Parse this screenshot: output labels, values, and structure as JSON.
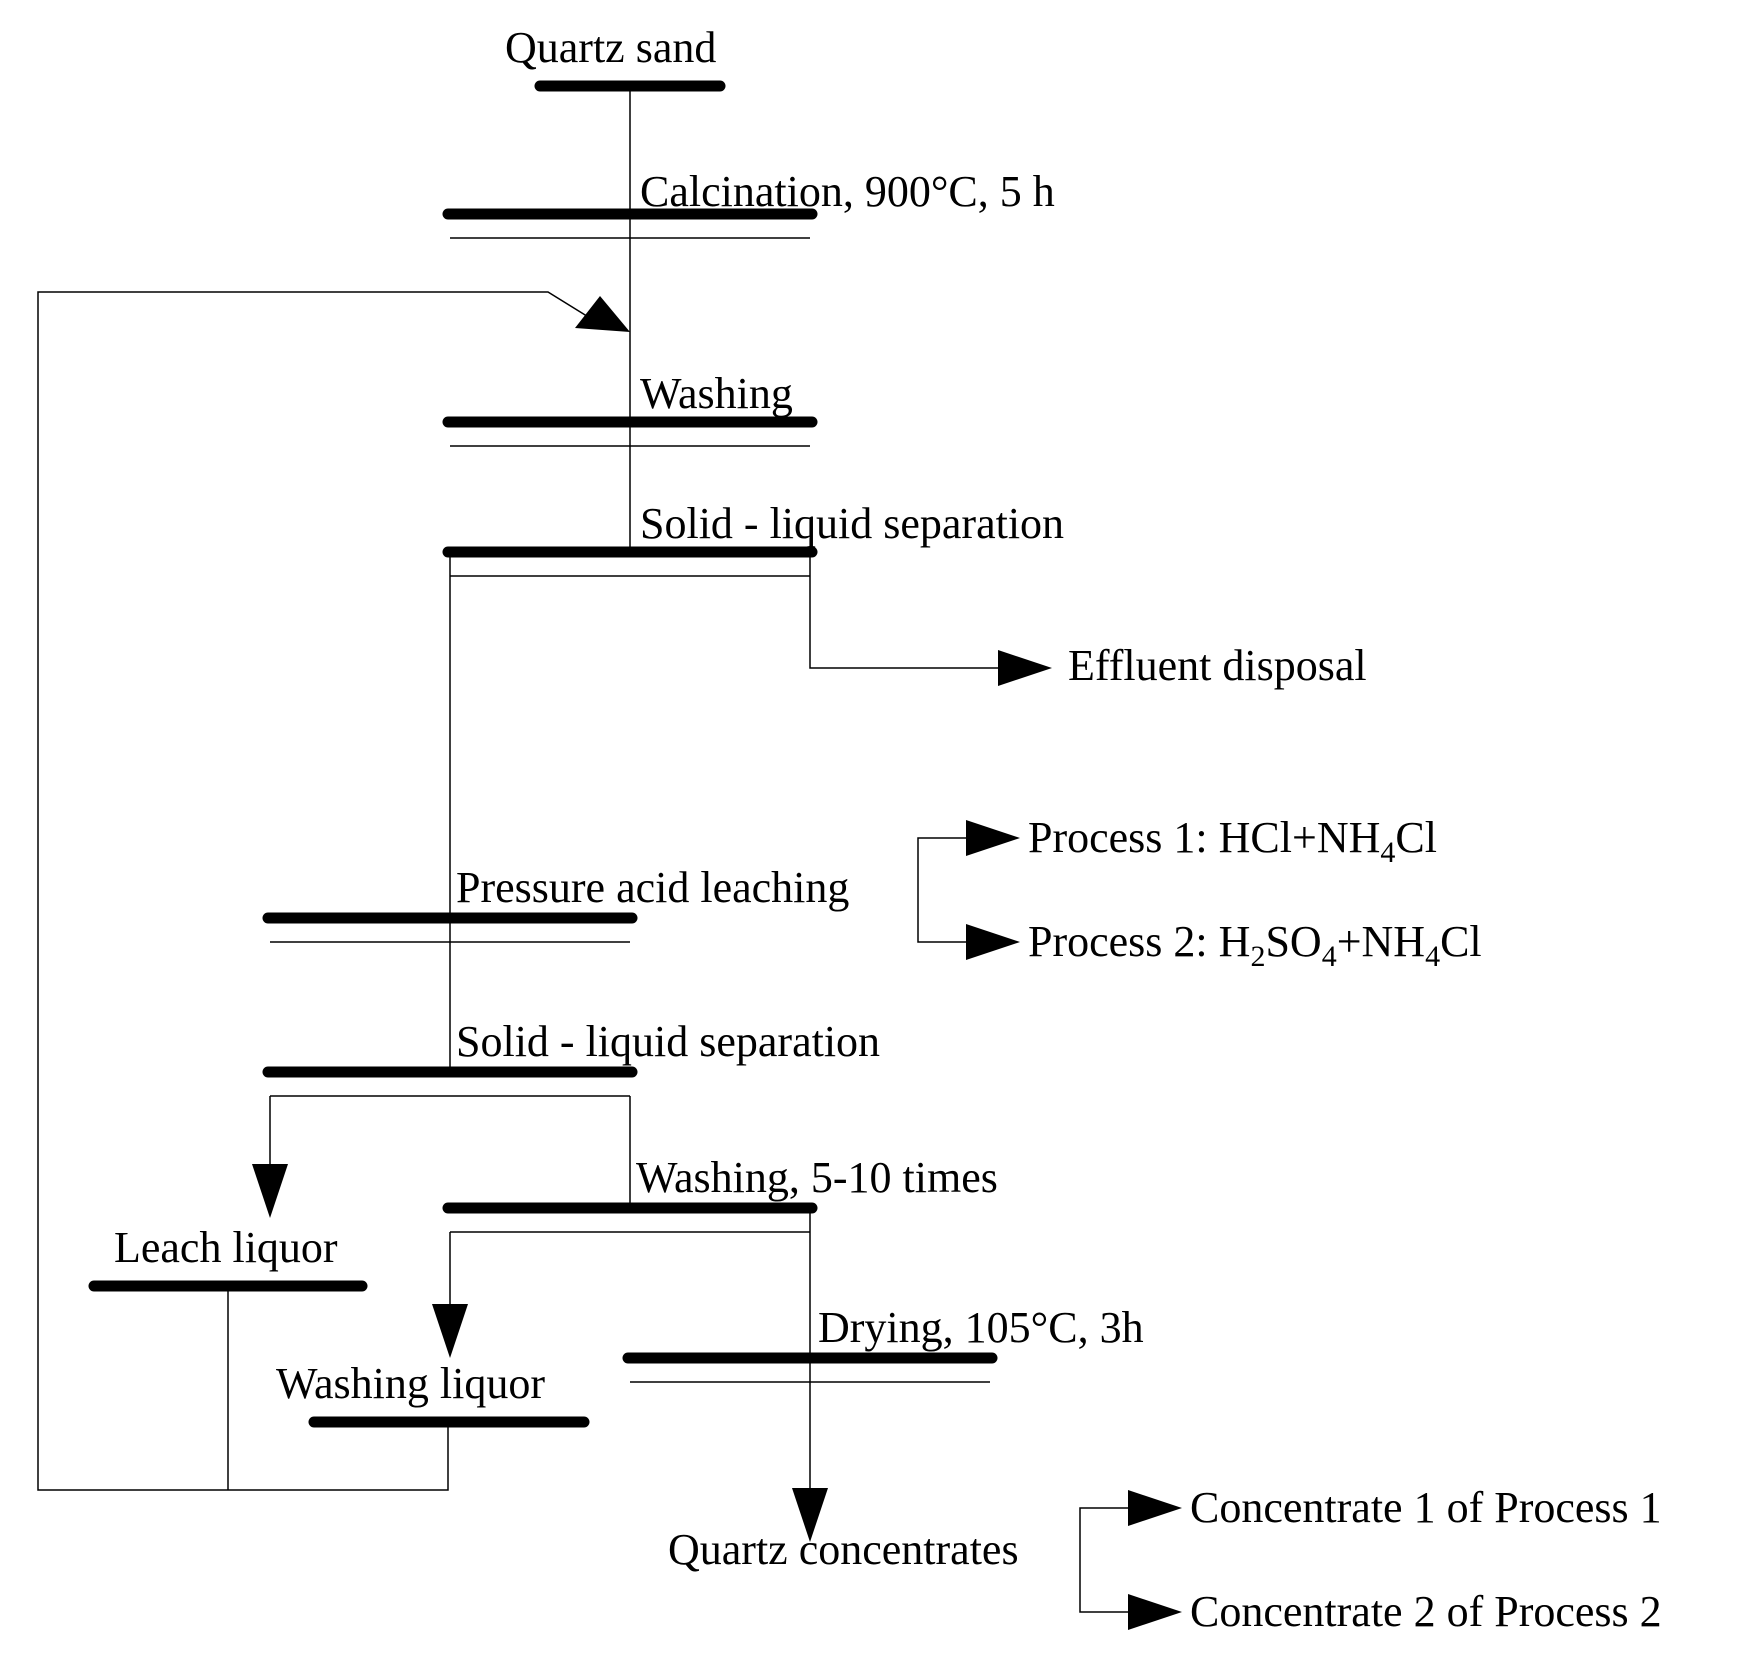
{
  "diagram": {
    "quartz_sand": "Quartz sand",
    "calcination": "Calcination, 900°C, 5 h",
    "washing": "Washing",
    "solid_liquid_1": "Solid - liquid separation",
    "effluent": "Effluent disposal",
    "pressure_leach": "Pressure acid leaching",
    "process1": {
      "a": "Process 1: HCl+NH",
      "sub": "4",
      "b": "Cl"
    },
    "process2": {
      "a": "Process 2: H",
      "sub1": "2",
      "b": "SO",
      "sub2": "4",
      "c": "+NH",
      "sub3": "4",
      "d": "Cl"
    },
    "solid_liquid_2": "Solid - liquid separation",
    "washing_times": "Washing, 5-10 times",
    "leach_liquor": "Leach liquor",
    "drying": "Drying, 105°C, 3h",
    "washing_liquor": "Washing liquor",
    "quartz_concentrates": "Quartz concentrates",
    "concentrate1": "Concentrate 1 of Process 1",
    "concentrate2": "Concentrate 2 of Process 2"
  }
}
